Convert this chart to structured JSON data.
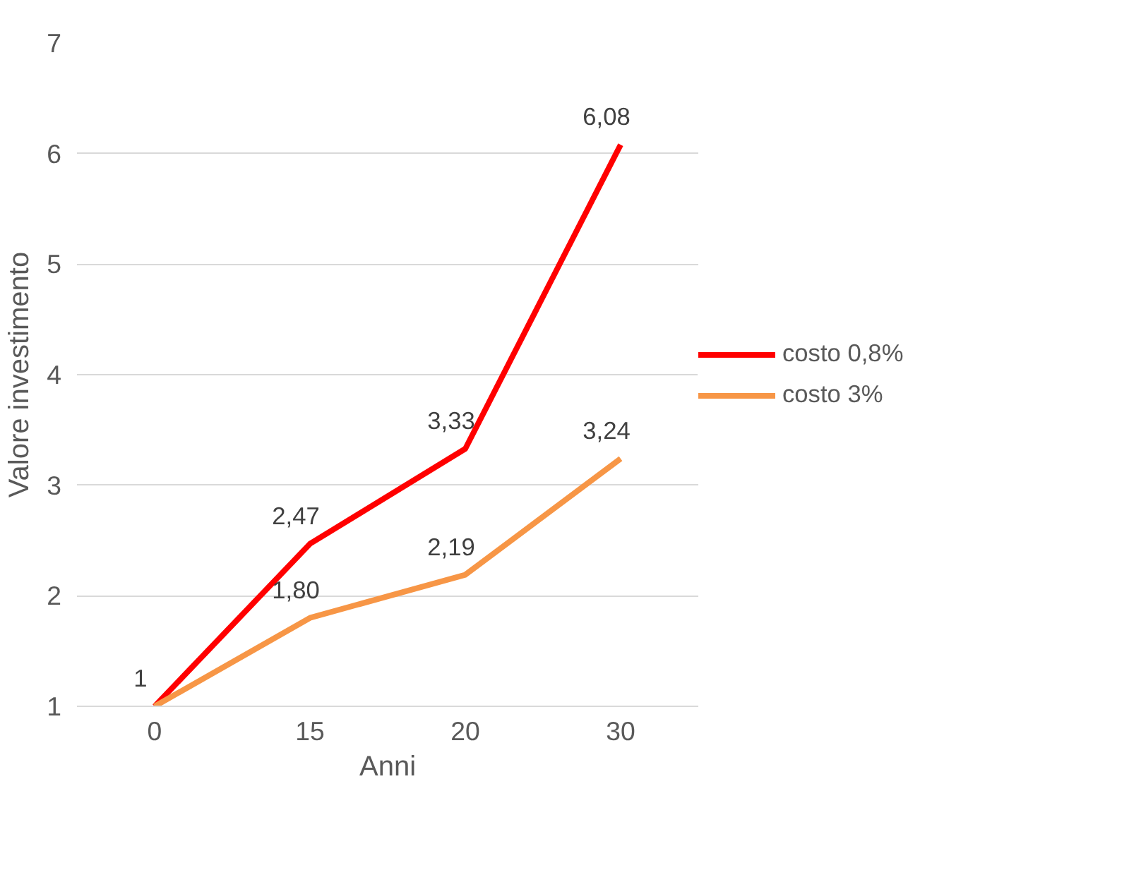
{
  "chart_data": {
    "type": "line",
    "xlabel": "Anni",
    "ylabel": "Valore investimento",
    "categories": [
      "0",
      "15",
      "20",
      "30"
    ],
    "series": [
      {
        "name": "costo 0,8%",
        "color": "#ff0000",
        "values": [
          1,
          2.47,
          3.33,
          6.08
        ],
        "value_labels": [
          "1",
          "2,47",
          "3,33",
          "6,08"
        ]
      },
      {
        "name": "costo 3%",
        "color": "#f79646",
        "values": [
          1,
          1.8,
          2.19,
          3.24
        ],
        "value_labels": [
          null,
          "1,80",
          "2,19",
          "3,24"
        ]
      }
    ],
    "ylim": [
      1,
      7
    ],
    "yticks": [
      1,
      2,
      3,
      4,
      5,
      6,
      7
    ],
    "grid": "y",
    "legend": "right",
    "marker": "none",
    "line_style": "solid"
  }
}
